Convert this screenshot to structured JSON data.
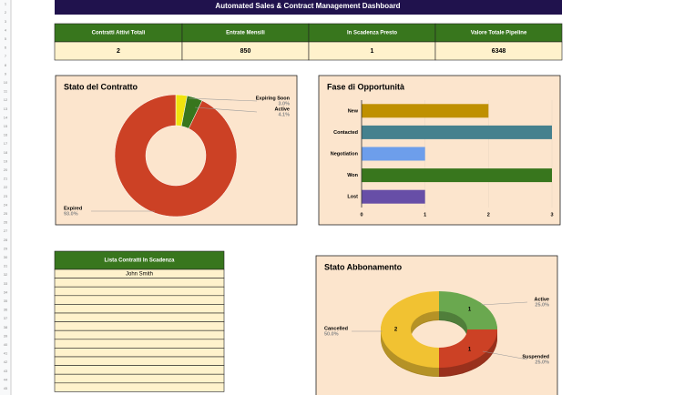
{
  "header": {
    "title": "Automated Sales & Contract Management Dashboard"
  },
  "row_numbers": [
    1,
    2,
    3,
    4,
    5,
    6,
    7,
    8,
    9,
    10,
    11,
    12,
    13,
    14,
    15,
    16,
    17,
    18,
    19,
    20,
    21,
    22,
    23,
    24,
    25,
    26,
    27,
    28,
    29,
    30,
    31,
    32,
    33,
    34,
    35,
    36,
    37,
    38,
    39,
    40,
    41,
    42,
    43,
    44,
    45
  ],
  "kpi_table": {
    "headers": [
      "Contratti Attivi Totali",
      "Entrate Mensili",
      "In Scadenza Presto",
      "Valore Totale Pipeline"
    ],
    "rows": [
      [
        2,
        850,
        1,
        6348
      ]
    ]
  },
  "expiring_table": {
    "header": "Lista Contratti In Scadenza",
    "rows": [
      "John Smith"
    ]
  },
  "chart_data": [
    {
      "type": "donut",
      "title": "Stato del Contratto",
      "categories": [
        "Expiring Soon",
        "Active",
        "Expired"
      ],
      "values": [
        3.0,
        4.1,
        93.0
      ],
      "value_labels": [
        "3.0%",
        "4.1%",
        "93.0%"
      ],
      "colors": [
        "#f1e30e",
        "#38761d",
        "#cc4125"
      ]
    },
    {
      "type": "hbar",
      "title": "Fase di Opportunità",
      "categories": [
        "New",
        "Contacted",
        "Negotiation",
        "Won",
        "Lost"
      ],
      "values": [
        2,
        3,
        1,
        3,
        1
      ],
      "colors": [
        "#bf9000",
        "#45818e",
        "#6d9eeb",
        "#38761d",
        "#674ea7"
      ],
      "xlim": [
        0,
        3
      ],
      "xticks": [
        0,
        1,
        2,
        3
      ],
      "grid": true
    },
    {
      "type": "donut3d",
      "title": "Stato Abbonamento",
      "categories": [
        "Active",
        "Suspended",
        "Cancelled"
      ],
      "values": [
        1,
        1,
        2
      ],
      "percent_labels": [
        "25.0%",
        "25.0%",
        "50.0%"
      ],
      "colors": [
        "#6aa84f",
        "#cc4125",
        "#f1c232"
      ]
    }
  ]
}
